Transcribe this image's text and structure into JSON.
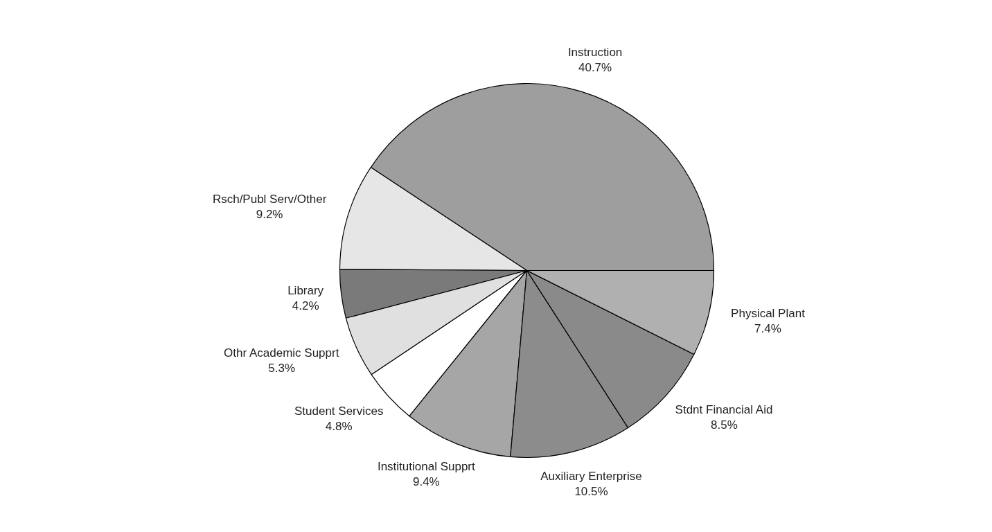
{
  "chart_data": {
    "type": "pie",
    "categories": [
      "Instruction",
      "Rsch/Publ Serv/Other",
      "Library",
      "Othr Academic Supprt",
      "Student Services",
      "Institutional Supprt",
      "Auxiliary Enterprise",
      "Stdnt Financial Aid",
      "Physical Plant"
    ],
    "values": [
      40.7,
      9.2,
      4.2,
      5.3,
      4.8,
      9.4,
      10.5,
      8.5,
      7.4
    ],
    "value_labels": [
      "40.7%",
      "9.2%",
      "4.2%",
      "5.3%",
      "4.8%",
      "9.4%",
      "10.5%",
      "8.5%",
      "7.4%"
    ],
    "colors": [
      "#9e9e9e",
      "#e6e6e6",
      "#7a7a7a",
      "#e0e0e0",
      "#ffffff",
      "#a6a6a6",
      "#8c8c8c",
      "#8a8a8a",
      "#b0b0b0"
    ]
  }
}
